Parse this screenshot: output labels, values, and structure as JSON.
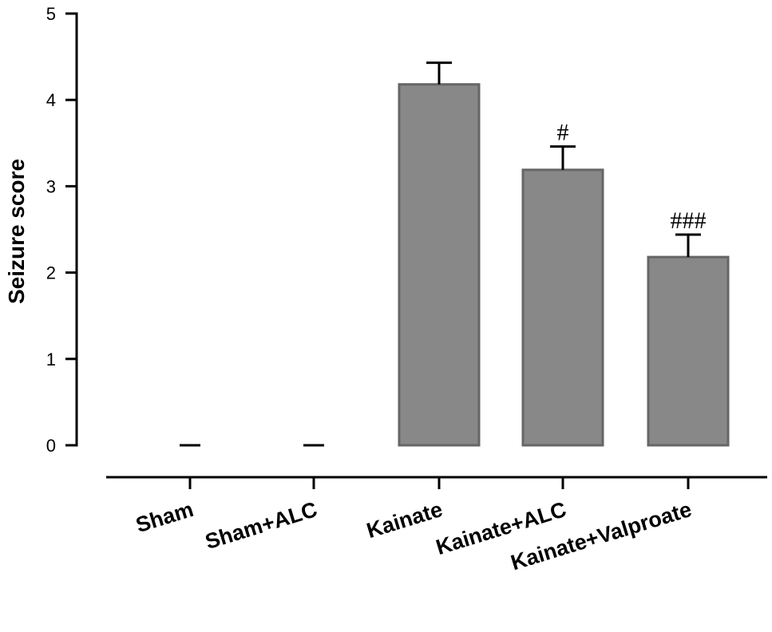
{
  "chart_data": {
    "type": "bar",
    "title": "",
    "xlabel": "",
    "ylabel": "Seizure score",
    "ylim": [
      0,
      5
    ],
    "yticks": [
      0,
      1,
      2,
      3,
      4,
      5
    ],
    "categories": [
      "Sham",
      "Sham+ALC",
      "Kainate",
      "Kainate+ALC",
      "Kainate+Valproate"
    ],
    "values": [
      0,
      0,
      4.18,
      3.19,
      2.18
    ],
    "errors": [
      0,
      0,
      0.25,
      0.27,
      0.26
    ],
    "annotations": [
      "",
      "",
      "",
      "#",
      "###"
    ],
    "colors": {
      "bar_fill": "#888888",
      "bar_edge": "#666666",
      "axis": "#000000"
    },
    "grid": false,
    "legend": "none"
  }
}
